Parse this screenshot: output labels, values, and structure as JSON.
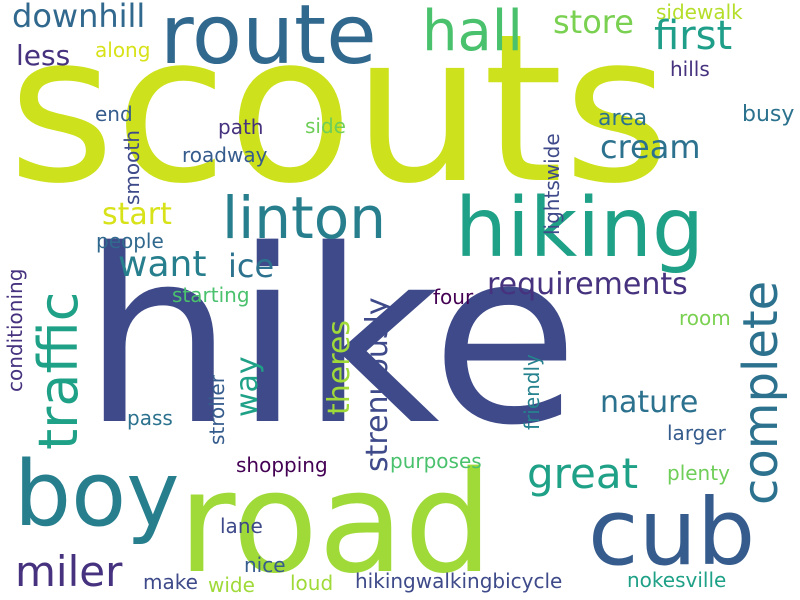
{
  "palette": {
    "lime": "#cde11d",
    "yellow_green": "#a0da39",
    "green": "#4ac16d",
    "teal_green": "#1fa187",
    "teal": "#277f8e",
    "blue": "#365c8d",
    "indigo": "#3e4a89",
    "purple": "#46327e",
    "dark_purple": "#440154"
  },
  "words": [
    {
      "id": "scouts",
      "text": "scouts",
      "color": "#cde11d",
      "orientation": "horizontal"
    },
    {
      "id": "hike",
      "text": "hike",
      "color": "#3e4a89",
      "orientation": "horizontal"
    },
    {
      "id": "road",
      "text": "road",
      "color": "#a0da39",
      "orientation": "horizontal"
    },
    {
      "id": "route",
      "text": "route",
      "color": "#31688e",
      "orientation": "horizontal"
    },
    {
      "id": "hiking",
      "text": "hiking",
      "color": "#1fa187",
      "orientation": "horizontal"
    },
    {
      "id": "boy",
      "text": "boy",
      "color": "#277f8e",
      "orientation": "horizontal"
    },
    {
      "id": "cub",
      "text": "cub",
      "color": "#365c8d",
      "orientation": "horizontal"
    },
    {
      "id": "linton",
      "text": "linton",
      "color": "#277f8e",
      "orientation": "horizontal"
    },
    {
      "id": "traffic",
      "text": "traffic",
      "color": "#1fa187",
      "orientation": "vertical"
    },
    {
      "id": "hall",
      "text": "hall",
      "color": "#4ac16d",
      "orientation": "horizontal"
    },
    {
      "id": "complete",
      "text": "complete",
      "color": "#2c728e",
      "orientation": "vertical"
    },
    {
      "id": "first",
      "text": "first",
      "color": "#1f9e89",
      "orientation": "horizontal"
    },
    {
      "id": "great",
      "text": "great",
      "color": "#1fa187",
      "orientation": "horizontal"
    },
    {
      "id": "miler",
      "text": "miler",
      "color": "#46327e",
      "orientation": "horizontal"
    },
    {
      "id": "want",
      "text": "want",
      "color": "#277f8e",
      "orientation": "horizontal"
    },
    {
      "id": "downhill",
      "text": "downhill",
      "color": "#31688e",
      "orientation": "horizontal"
    },
    {
      "id": "store",
      "text": "store",
      "color": "#7ad151",
      "orientation": "horizontal"
    },
    {
      "id": "cream",
      "text": "cream",
      "color": "#2c728e",
      "orientation": "horizontal"
    },
    {
      "id": "nature",
      "text": "nature",
      "color": "#2c728e",
      "orientation": "horizontal"
    },
    {
      "id": "requirements",
      "text": "requirements",
      "color": "#46327e",
      "orientation": "horizontal"
    },
    {
      "id": "strenuously",
      "text": "strenuously",
      "color": "#3e4a89",
      "orientation": "vertical"
    },
    {
      "id": "theres",
      "text": "theres",
      "color": "#a0da39",
      "orientation": "vertical"
    },
    {
      "id": "way",
      "text": "way",
      "color": "#1fa187",
      "orientation": "vertical"
    },
    {
      "id": "ice",
      "text": "ice",
      "color": "#2c728e",
      "orientation": "horizontal"
    },
    {
      "id": "start",
      "text": "start",
      "color": "#d8e219",
      "orientation": "horizontal"
    },
    {
      "id": "less",
      "text": "less",
      "color": "#46327e",
      "orientation": "horizontal"
    },
    {
      "id": "along",
      "text": "along",
      "color": "#d8e219",
      "orientation": "horizontal"
    },
    {
      "id": "sidewalk",
      "text": "sidewalk",
      "color": "#b5de2b",
      "orientation": "horizontal"
    },
    {
      "id": "hills",
      "text": "hills",
      "color": "#46327e",
      "orientation": "horizontal"
    },
    {
      "id": "end",
      "text": "end",
      "color": "#365c8d",
      "orientation": "horizontal"
    },
    {
      "id": "path",
      "text": "path",
      "color": "#46327e",
      "orientation": "horizontal"
    },
    {
      "id": "side",
      "text": "side",
      "color": "#6ece58",
      "orientation": "horizontal"
    },
    {
      "id": "area",
      "text": "area",
      "color": "#2c728e",
      "orientation": "horizontal"
    },
    {
      "id": "busy",
      "text": "busy",
      "color": "#2c728e",
      "orientation": "horizontal"
    },
    {
      "id": "roadway",
      "text": "roadway",
      "color": "#365c8d",
      "orientation": "horizontal"
    },
    {
      "id": "smooth",
      "text": "smooth",
      "color": "#3e4a89",
      "orientation": "vertical"
    },
    {
      "id": "lightswide",
      "text": "lightswide",
      "color": "#3e4a89",
      "orientation": "vertical"
    },
    {
      "id": "people",
      "text": "people",
      "color": "#31688e",
      "orientation": "horizontal"
    },
    {
      "id": "starting",
      "text": "starting",
      "color": "#4ac16d",
      "orientation": "horizontal"
    },
    {
      "id": "four",
      "text": "four",
      "color": "#440154",
      "orientation": "horizontal"
    },
    {
      "id": "room",
      "text": "room",
      "color": "#7ad151",
      "orientation": "horizontal"
    },
    {
      "id": "conditioning",
      "text": "conditioning",
      "color": "#46327e",
      "orientation": "vertical"
    },
    {
      "id": "friendly",
      "text": "friendly",
      "color": "#26828e",
      "orientation": "vertical"
    },
    {
      "id": "stroller",
      "text": "stroller",
      "color": "#365c8d",
      "orientation": "vertical"
    },
    {
      "id": "pass",
      "text": "pass",
      "color": "#2c728e",
      "orientation": "horizontal"
    },
    {
      "id": "larger",
      "text": "larger",
      "color": "#365c8d",
      "orientation": "horizontal"
    },
    {
      "id": "purposes",
      "text": "purposes",
      "color": "#4ac16d",
      "orientation": "horizontal"
    },
    {
      "id": "shopping",
      "text": "shopping",
      "color": "#440154",
      "orientation": "horizontal"
    },
    {
      "id": "plenty",
      "text": "plenty",
      "color": "#6ece58",
      "orientation": "horizontal"
    },
    {
      "id": "lane",
      "text": "lane",
      "color": "#3e4a89",
      "orientation": "horizontal"
    },
    {
      "id": "nice",
      "text": "nice",
      "color": "#365c8d",
      "orientation": "horizontal"
    },
    {
      "id": "make",
      "text": "make",
      "color": "#3e4a89",
      "orientation": "horizontal"
    },
    {
      "id": "wide",
      "text": "wide",
      "color": "#a0da39",
      "orientation": "horizontal"
    },
    {
      "id": "loud",
      "text": "loud",
      "color": "#a0da39",
      "orientation": "horizontal"
    },
    {
      "id": "hikingwalkingbicycle",
      "text": "hikingwalkingbicycle",
      "color": "#3e4a89",
      "orientation": "horizontal"
    },
    {
      "id": "nokesville",
      "text": "nokesville",
      "color": "#1fa187",
      "orientation": "horizontal"
    }
  ]
}
